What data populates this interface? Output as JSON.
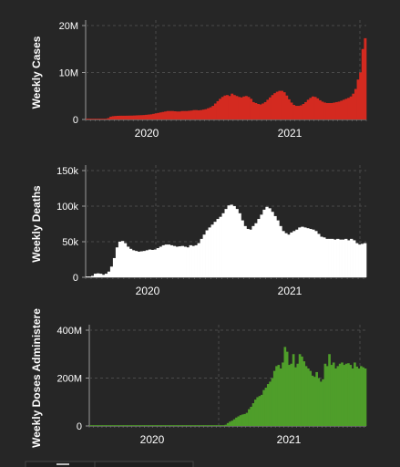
{
  "chart_data": [
    {
      "type": "bar",
      "ylabel": "Weekly Cases",
      "xlabel": "",
      "ylim": [
        0,
        20000000
      ],
      "yticks": [
        0,
        10000000,
        20000000
      ],
      "ytick_labels": [
        "0",
        "10M",
        "20M"
      ],
      "xtick_labels": [
        "2020",
        "2021"
      ],
      "color": "#d42a20",
      "grid": true,
      "values": [
        0,
        0,
        0,
        0,
        0,
        0,
        0,
        0,
        100000,
        300000,
        600000,
        700000,
        750000,
        780000,
        800000,
        800000,
        800000,
        810000,
        820000,
        830000,
        850000,
        880000,
        900000,
        920000,
        950000,
        1000000,
        1050000,
        1100000,
        1200000,
        1300000,
        1400000,
        1500000,
        1600000,
        1700000,
        1800000,
        1800000,
        1800000,
        1750000,
        1700000,
        1700000,
        1800000,
        1800000,
        1800000,
        1850000,
        1900000,
        2000000,
        2000000,
        1950000,
        2000000,
        2100000,
        2200000,
        2400000,
        2600000,
        2900000,
        3400000,
        3900000,
        4400000,
        4800000,
        5100000,
        5200000,
        5000000,
        5500000,
        5200000,
        5000000,
        4800000,
        4700000,
        4900000,
        5000000,
        4800000,
        4400000,
        3700000,
        3500000,
        3300000,
        3200000,
        3400000,
        3700000,
        4200000,
        4700000,
        5200000,
        5600000,
        5900000,
        6100000,
        6100000,
        5800000,
        5100000,
        4300000,
        3600000,
        3100000,
        2900000,
        2900000,
        3000000,
        3300000,
        3700000,
        4200000,
        4600000,
        4900000,
        4800000,
        4500000,
        4100000,
        3800000,
        3600000,
        3500000,
        3500000,
        3500000,
        3600000,
        3700000,
        3800000,
        4000000,
        4200000,
        4400000,
        4600000,
        4900000,
        5500000,
        6500000,
        8500000,
        10000000,
        15000000,
        17300000
      ]
    },
    {
      "type": "bar",
      "ylabel": "Weekly Deaths",
      "xlabel": "",
      "ylim": [
        0,
        150000
      ],
      "yticks": [
        0,
        50000,
        100000,
        150000
      ],
      "ytick_labels": [
        "0",
        "50k",
        "100k",
        "150k"
      ],
      "xtick_labels": [
        "2020",
        "2021"
      ],
      "color": "#ffffff",
      "grid": true,
      "values": [
        0,
        0,
        2000,
        5000,
        5500,
        5000,
        3500,
        5000,
        8000,
        15000,
        27000,
        42000,
        50000,
        51000,
        48000,
        43000,
        40000,
        38000,
        37000,
        36000,
        36500,
        37000,
        38000,
        39000,
        38500,
        39000,
        41000,
        43000,
        45000,
        46000,
        46000,
        45000,
        44000,
        43000,
        43500,
        44000,
        43000,
        42000,
        45000,
        44000,
        45000,
        48000,
        54000,
        60000,
        66000,
        70000,
        74000,
        78000,
        82000,
        85000,
        90000,
        96000,
        101000,
        102000,
        100000,
        96000,
        90000,
        80000,
        72000,
        68000,
        67000,
        72000,
        76000,
        82000,
        88000,
        95000,
        99000,
        97000,
        92000,
        86000,
        80000,
        72000,
        65000,
        62000,
        60000,
        63000,
        65000,
        67000,
        70000,
        71000,
        70000,
        69000,
        68000,
        67000,
        65000,
        61000,
        57000,
        56000,
        54000,
        54000,
        54000,
        53000,
        54000,
        53000,
        53000,
        54000,
        52000,
        54000,
        52000,
        48000,
        46000,
        47000,
        48000
      ]
    },
    {
      "type": "bar",
      "ylabel": "Weekly Doses Administere",
      "xlabel": "",
      "ylim": [
        0,
        400000000
      ],
      "yticks": [
        0,
        200000000,
        400000000
      ],
      "ytick_labels": [
        "0",
        "200M",
        "400M"
      ],
      "xtick_labels": [
        "2020",
        "2021"
      ],
      "color": "#4f9e2a",
      "grid": true,
      "values": [
        0,
        0,
        0,
        0,
        0,
        0,
        0,
        0,
        0,
        0,
        0,
        0,
        0,
        0,
        0,
        0,
        0,
        0,
        0,
        0,
        0,
        0,
        0,
        0,
        0,
        0,
        0,
        0,
        0,
        0,
        0,
        0,
        0,
        0,
        0,
        0,
        0,
        0,
        0,
        0,
        0,
        0,
        0,
        0,
        0,
        0,
        0,
        0,
        0,
        0,
        0,
        0,
        0,
        0,
        0,
        0,
        0,
        0,
        0,
        0,
        0,
        0,
        0,
        0,
        5000000,
        12000000,
        18000000,
        22000000,
        28000000,
        35000000,
        40000000,
        45000000,
        48000000,
        50000000,
        55000000,
        70000000,
        80000000,
        95000000,
        110000000,
        120000000,
        125000000,
        130000000,
        150000000,
        160000000,
        175000000,
        185000000,
        200000000,
        230000000,
        250000000,
        255000000,
        240000000,
        265000000,
        330000000,
        310000000,
        255000000,
        260000000,
        300000000,
        245000000,
        260000000,
        300000000,
        290000000,
        270000000,
        250000000,
        240000000,
        230000000,
        210000000,
        205000000,
        225000000,
        200000000,
        185000000,
        195000000,
        260000000,
        250000000,
        300000000,
        255000000,
        265000000,
        240000000,
        250000000,
        260000000,
        265000000,
        255000000,
        260000000,
        262000000,
        255000000,
        240000000,
        265000000,
        248000000,
        240000000,
        250000000,
        245000000,
        240000000
      ]
    }
  ]
}
